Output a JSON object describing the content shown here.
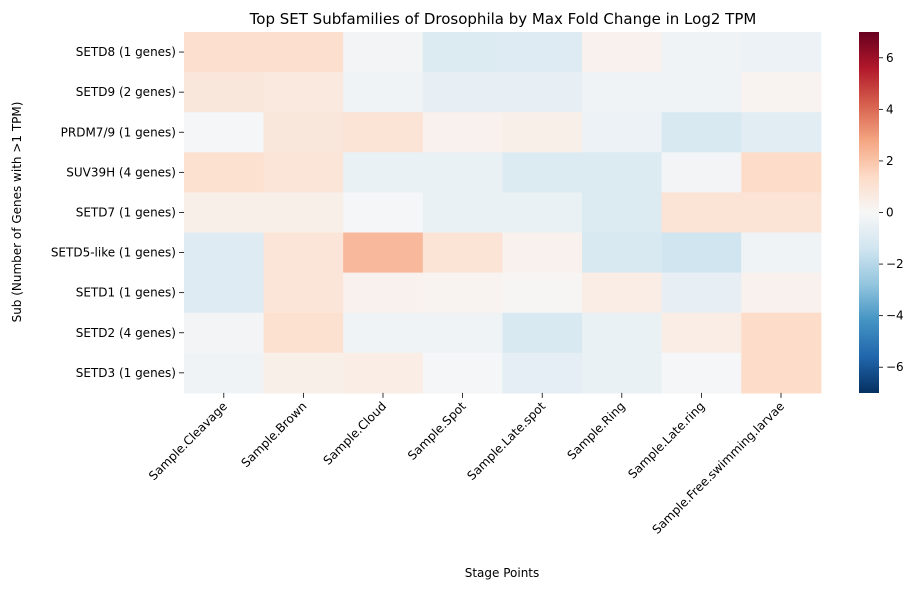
{
  "chart_data": {
    "type": "heatmap",
    "title": "Top SET Subfamilies of Drosophila by Max Fold Change in Log2 TPM",
    "xlabel": "Stage Points",
    "ylabel": "Sub (Number of Genes with >1 TPM)",
    "x_categories": [
      "Sample.Cleavage",
      "Sample.Brown",
      "Sample.Cloud",
      "Sample.Spot",
      "Sample.Late.spot",
      "Sample.Ring",
      "Sample.Late.ring",
      "Sample.Free.swimming.larvae"
    ],
    "y_categories": [
      "SETD8 (1 genes)",
      "SETD9 (2 genes)",
      "PRDM7/9 (1 genes)",
      "SUV39H (4 genes)",
      "SETD7 (1 genes)",
      "SETD5-like (1 genes)",
      "SETD1 (1 genes)",
      "SETD2 (4 genes)",
      "SETD3 (1 genes)"
    ],
    "values": [
      [
        1.2,
        1.2,
        -0.2,
        -1.0,
        -0.9,
        0.3,
        -0.3,
        -0.4
      ],
      [
        0.8,
        0.7,
        -0.3,
        -0.6,
        -0.6,
        -0.3,
        -0.3,
        0.2
      ],
      [
        -0.1,
        0.8,
        1.0,
        0.3,
        0.4,
        -0.4,
        -1.1,
        -0.8
      ],
      [
        1.1,
        0.9,
        -0.5,
        -0.5,
        -1.0,
        -1.0,
        -0.2,
        1.3
      ],
      [
        0.4,
        0.4,
        -0.1,
        -0.5,
        -0.5,
        -1.0,
        1.0,
        1.0
      ],
      [
        -0.9,
        0.9,
        2.3,
        1.0,
        0.3,
        -1.1,
        -1.4,
        -0.3
      ],
      [
        -0.9,
        0.9,
        0.3,
        0.2,
        0.1,
        0.5,
        -0.6,
        0.3
      ],
      [
        -0.2,
        1.1,
        -0.3,
        -0.3,
        -1.1,
        -0.5,
        0.5,
        1.3
      ],
      [
        -0.3,
        0.4,
        0.5,
        -0.1,
        -0.7,
        -0.5,
        -0.1,
        1.3
      ]
    ],
    "vmin": -7,
    "vmax": 7,
    "colormap": "RdBu_r",
    "colorbar_ticks": [
      -6,
      -4,
      -2,
      0,
      2,
      4,
      6
    ],
    "colorbar_tick_labels": [
      "−6",
      "−4",
      "−2",
      "0",
      "2",
      "4",
      "6"
    ],
    "grid": false,
    "legend": "colorbar-right"
  }
}
